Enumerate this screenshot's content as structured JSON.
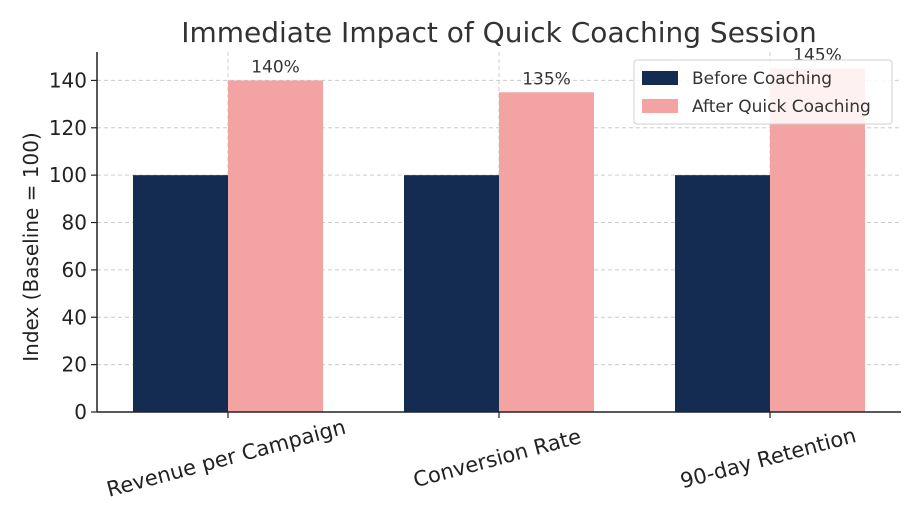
{
  "chart_data": {
    "type": "bar",
    "title": "Immediate Impact of Quick Coaching Session",
    "xlabel": "",
    "ylabel": "Index (Baseline = 100)",
    "categories": [
      "Revenue per Campaign",
      "Conversion Rate",
      "90-day Retention"
    ],
    "series": [
      {
        "name": "Before Coaching",
        "values": [
          100,
          100,
          100
        ],
        "color": "#142b52"
      },
      {
        "name": "After Quick Coaching",
        "values": [
          140,
          135,
          145
        ],
        "color": "#f4a3a3",
        "data_labels": [
          "140%",
          "135%",
          "145%"
        ]
      }
    ],
    "ylim": [
      0,
      152
    ],
    "yticks": [
      0,
      20,
      40,
      60,
      80,
      100,
      120,
      140
    ],
    "grid": true,
    "legend_position": "top-right"
  }
}
